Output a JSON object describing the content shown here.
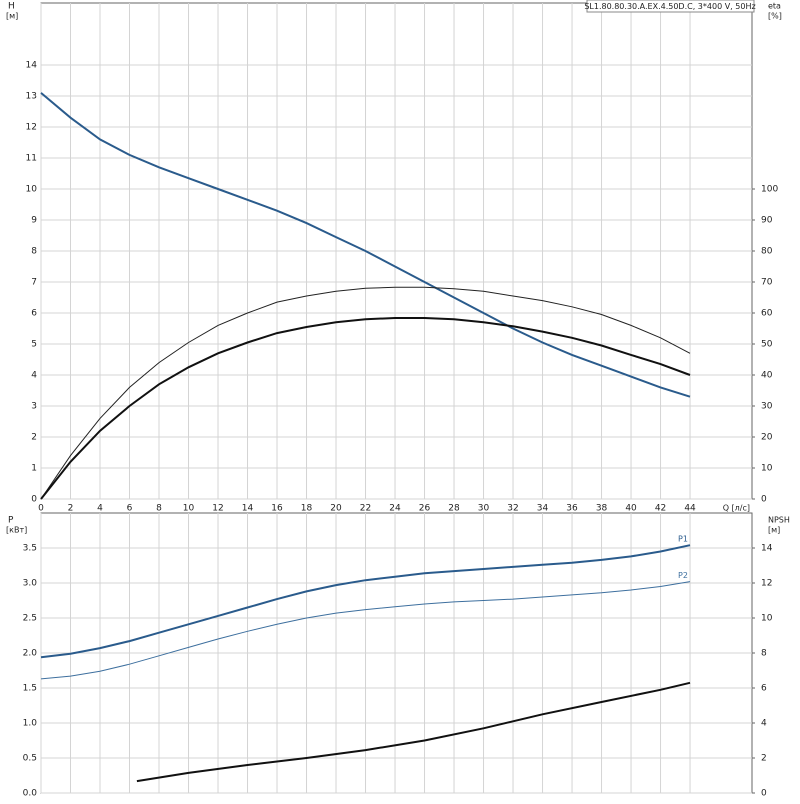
{
  "chart_data": [
    {
      "type": "line",
      "title": "SL1.80.80.30.A.EX.4.50D.C, 3*400 V, 50Hz",
      "ylabel": "H",
      "yunit": "[м]",
      "y2label": "eta",
      "y2unit": "[%]",
      "xlabel": "Q [л/с]",
      "x": [
        0,
        2,
        4,
        6,
        8,
        10,
        12,
        14,
        16,
        18,
        20,
        22,
        24,
        26,
        28,
        30,
        32,
        34,
        36,
        38,
        40,
        42,
        44
      ],
      "xlim": [
        0,
        48.2
      ],
      "xticks": [
        0,
        2,
        4,
        6,
        8,
        10,
        12,
        14,
        16,
        18,
        20,
        22,
        24,
        26,
        28,
        30,
        32,
        34,
        36,
        38,
        40,
        42,
        44
      ],
      "ylim": [
        0,
        16
      ],
      "yticks": [
        0,
        1,
        2,
        3,
        4,
        5,
        6,
        7,
        8,
        9,
        10,
        11,
        12,
        13,
        14
      ],
      "y2lim": [
        0,
        160
      ],
      "y2ticks": [
        0,
        10,
        20,
        30,
        40,
        50,
        60,
        70,
        80,
        90,
        100
      ],
      "grid": true,
      "series": [
        {
          "color": "#2a5b8c",
          "width": 2,
          "values": [
            13.1,
            12.3,
            11.6,
            11.1,
            10.7,
            10.35,
            10.0,
            9.65,
            9.3,
            8.9,
            8.45,
            8.0,
            7.5,
            7.0,
            6.5,
            6.0,
            5.5,
            5.05,
            4.65,
            4.3,
            3.95,
            3.6,
            3.3
          ]
        },
        {
          "color": "#222222",
          "width": 1,
          "axis": "y2",
          "values": [
            0,
            14,
            26,
            36,
            44,
            50.5,
            56,
            60,
            63.5,
            65.5,
            67,
            68,
            68.3,
            68.3,
            67.8,
            67,
            65.5,
            64,
            62,
            59.5,
            56,
            52,
            47
          ]
        },
        {
          "color": "#111111",
          "width": 2,
          "axis": "y2",
          "values": [
            0,
            12,
            22,
            30,
            37,
            42.5,
            47,
            50.5,
            53.5,
            55.5,
            57,
            58,
            58.4,
            58.4,
            58,
            57,
            55.7,
            54,
            52,
            49.5,
            46.5,
            43.5,
            40
          ]
        }
      ]
    },
    {
      "type": "line",
      "ylabel": "P",
      "yunit": "[кВт]",
      "y2label": "NPSH",
      "y2unit": "[м]",
      "x": [
        0,
        2,
        4,
        6,
        8,
        10,
        12,
        14,
        16,
        18,
        20,
        22,
        24,
        26,
        28,
        30,
        32,
        34,
        36,
        38,
        40,
        42,
        44
      ],
      "xlim": [
        0,
        48.2
      ],
      "xticks": [
        0,
        2,
        4,
        6,
        8,
        10,
        12,
        14,
        16,
        18,
        20,
        22,
        24,
        26,
        28,
        30,
        32,
        34,
        36,
        38,
        40,
        42,
        44
      ],
      "ylim": [
        0,
        4.0
      ],
      "yticks": [
        {
          "value": 0,
          "label": "0.0"
        },
        0.5,
        {
          "value": 1,
          "label": "1.0"
        },
        1.5,
        {
          "value": 2,
          "label": "2.0"
        },
        2.5,
        {
          "value": 3,
          "label": "3.0"
        },
        3.5
      ],
      "y2lim": [
        0,
        16
      ],
      "y2ticks": [
        0,
        2,
        4,
        6,
        8,
        10,
        12,
        14
      ],
      "grid": true,
      "series": [
        {
          "name": "P1",
          "color": "#2a5b8c",
          "width": 2,
          "values": [
            1.94,
            1.99,
            2.07,
            2.17,
            2.29,
            2.41,
            2.53,
            2.65,
            2.77,
            2.88,
            2.97,
            3.04,
            3.09,
            3.14,
            3.17,
            3.2,
            3.23,
            3.26,
            3.29,
            3.33,
            3.38,
            3.45,
            3.54
          ]
        },
        {
          "name": "P2",
          "color": "#3d6f9e",
          "width": 1,
          "values": [
            1.63,
            1.67,
            1.74,
            1.84,
            1.96,
            2.08,
            2.2,
            2.31,
            2.41,
            2.5,
            2.57,
            2.62,
            2.66,
            2.7,
            2.73,
            2.75,
            2.77,
            2.8,
            2.83,
            2.86,
            2.9,
            2.95,
            3.02
          ]
        },
        {
          "color": "#111111",
          "width": 2,
          "axis": "y2",
          "x": [
            6.5,
            10,
            14,
            18,
            22,
            26,
            30,
            34,
            38,
            42,
            44
          ],
          "values": [
            0.68,
            1.15,
            1.6,
            2.0,
            2.45,
            3.0,
            3.7,
            4.5,
            5.2,
            5.9,
            6.3
          ]
        }
      ]
    }
  ]
}
